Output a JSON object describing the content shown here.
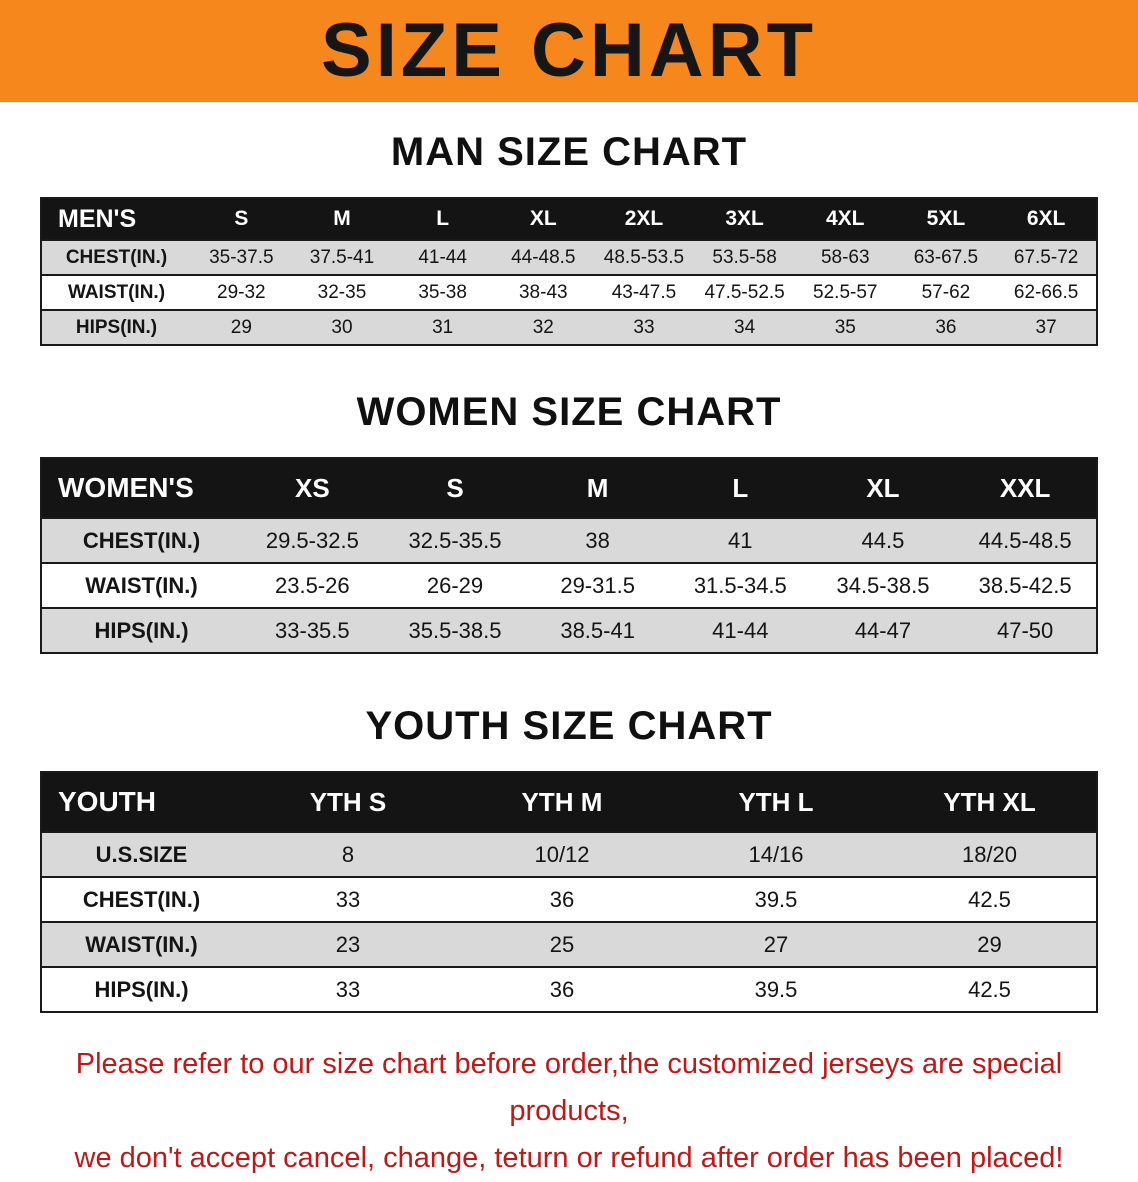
{
  "banner": {
    "title": "SIZE CHART"
  },
  "colors": {
    "banner_orange": "#f6871d",
    "table_header_bg": "#141414",
    "row_stripe_gray": "#d9d9d9",
    "footer_red": "#c41616"
  },
  "sections": {
    "men": {
      "title": "MAN SIZE CHART",
      "table": {
        "header": [
          "MEN'S",
          "S",
          "M",
          "L",
          "XL",
          "2XL",
          "3XL",
          "4XL",
          "5XL",
          "6XL"
        ],
        "rows": [
          [
            "CHEST(IN.)",
            "35-37.5",
            "37.5-41",
            "41-44",
            "44-48.5",
            "48.5-53.5",
            "53.5-58",
            "58-63",
            "63-67.5",
            "67.5-72"
          ],
          [
            "WAIST(IN.)",
            "29-32",
            "32-35",
            "35-38",
            "38-43",
            "43-47.5",
            "47.5-52.5",
            "52.5-57",
            "57-62",
            "62-66.5"
          ],
          [
            "HIPS(IN.)",
            "29",
            "30",
            "31",
            "32",
            "33",
            "34",
            "35",
            "36",
            "37"
          ]
        ]
      }
    },
    "women": {
      "title": "WOMEN SIZE CHART",
      "table": {
        "header": [
          "WOMEN'S",
          "XS",
          "S",
          "M",
          "L",
          "XL",
          "XXL"
        ],
        "rows": [
          [
            "CHEST(IN.)",
            "29.5-32.5",
            "32.5-35.5",
            "38",
            "41",
            "44.5",
            "44.5-48.5"
          ],
          [
            "WAIST(IN.)",
            "23.5-26",
            "26-29",
            "29-31.5",
            "31.5-34.5",
            "34.5-38.5",
            "38.5-42.5"
          ],
          [
            "HIPS(IN.)",
            "33-35.5",
            "35.5-38.5",
            "38.5-41",
            "41-44",
            "44-47",
            "47-50"
          ]
        ]
      }
    },
    "youth": {
      "title": "YOUTH SIZE CHART",
      "table": {
        "header": [
          "YOUTH",
          "YTH S",
          "YTH M",
          "YTH L",
          "YTH XL"
        ],
        "rows": [
          [
            "U.S.SIZE",
            "8",
            "10/12",
            "14/16",
            "18/20"
          ],
          [
            "CHEST(IN.)",
            "33",
            "36",
            "39.5",
            "42.5"
          ],
          [
            "WAIST(IN.)",
            "23",
            "25",
            "27",
            "29"
          ],
          [
            "HIPS(IN.)",
            "33",
            "36",
            "39.5",
            "42.5"
          ]
        ]
      }
    }
  },
  "footer": {
    "line1": "Please refer to our size chart before order,the customized jerseys are special products,",
    "line2": "we don't accept cancel, change, teturn or refund after order has been placed!"
  }
}
